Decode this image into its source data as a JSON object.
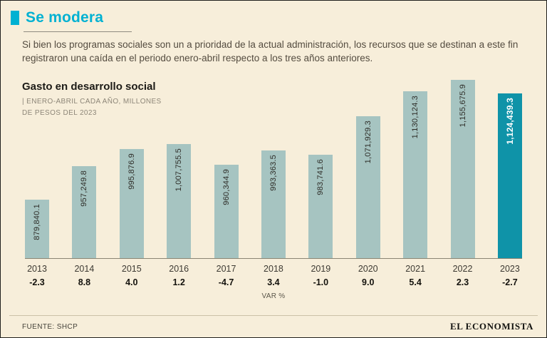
{
  "header": {
    "title": "Se modera",
    "intro": "Si bien los programas sociales son un a prioridad de la actual administración, los recursos que se destinan a este fin registraron una caída en el periodo enero-abril respecto a los tres años anteriores."
  },
  "chart": {
    "title": "Gasto en desarrollo social",
    "subtitle_line1": "| ENERO-ABRIL CADA AÑO, MILLONES",
    "subtitle_line2": "DE PESOS DEL 2023",
    "xlabel": "VAR %"
  },
  "chart_data": {
    "type": "bar",
    "title": "Gasto en desarrollo social",
    "subtitle": "ENERO-ABRIL CADA AÑO, MILLONES DE PESOS DEL 2023",
    "categories": [
      "2013",
      "2014",
      "2015",
      "2016",
      "2017",
      "2018",
      "2019",
      "2020",
      "2021",
      "2022",
      "2023"
    ],
    "values": [
      879840.1,
      957249.8,
      995876.9,
      1007755.5,
      960344.9,
      993363.5,
      983741.6,
      1071929.3,
      1130124.3,
      1155675.9,
      1124439.3
    ],
    "value_labels": [
      "879,840.1",
      "957,249.8",
      "995,876.9",
      "1,007,755.5",
      "960,344.9",
      "993,363.5",
      "983,741.6",
      "1,071,929.3",
      "1,130,124.3",
      "1,155,675.9",
      "1,124,439.3"
    ],
    "var_pct": [
      -2.3,
      8.8,
      4.0,
      1.2,
      -4.7,
      3.4,
      -1.0,
      9.0,
      5.4,
      2.3,
      -2.7
    ],
    "var_pct_labels": [
      "-2.3",
      "8.8",
      "4.0",
      "1.2",
      "-4.7",
      "3.4",
      "-1.0",
      "9.0",
      "5.4",
      "2.3",
      "-2.7"
    ],
    "xlabel": "VAR %",
    "highlight_index": 10,
    "bar_color": "#a6c4c1",
    "highlight_color": "#0f93a8",
    "visual_baseline_value": 745000,
    "grid": false,
    "legend": "none"
  },
  "footer": {
    "source": "FUENTE: SHCP",
    "brand": "EL ECONOMISTA"
  },
  "colors": {
    "background": "#f7eeda",
    "accent_cyan": "#00b1d2",
    "bar_teal_light": "#a6c4c1",
    "bar_teal_dark": "#0f93a8",
    "text_brown": "#544c40"
  }
}
